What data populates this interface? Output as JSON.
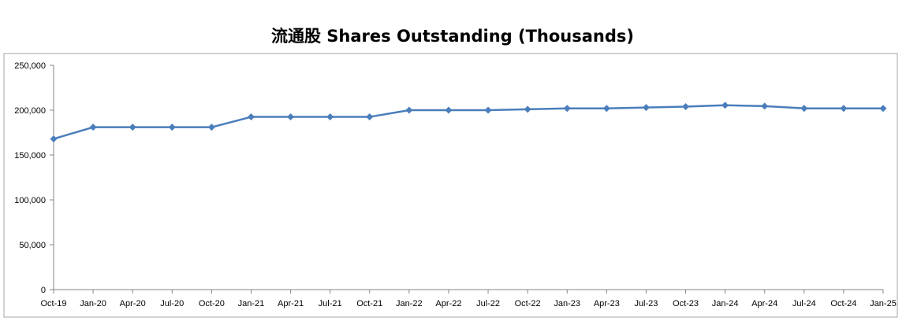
{
  "chart_data": {
    "type": "line",
    "title": "流通股 Shares Outstanding (Thousands)",
    "xlabel": "",
    "ylabel": "",
    "categories": [
      "Oct-19",
      "Jan-20",
      "Apr-20",
      "Jul-20",
      "Oct-20",
      "Jan-21",
      "Apr-21",
      "Jul-21",
      "Oct-21",
      "Jan-22",
      "Apr-22",
      "Jul-22",
      "Oct-22",
      "Jan-23",
      "Apr-23",
      "Jul-23",
      "Oct-23",
      "Jan-24",
      "Apr-24",
      "Jul-24",
      "Oct-24",
      "Jan-25"
    ],
    "series": [
      {
        "name": "",
        "color": "#4a7ebb",
        "values": [
          168000,
          181000,
          181000,
          181000,
          181000,
          192500,
          192500,
          192500,
          192500,
          200000,
          200000,
          200000,
          201000,
          202000,
          202000,
          203000,
          204000,
          205500,
          204500,
          202000,
          202000,
          202000
        ]
      }
    ],
    "ylim": [
      0,
      250000
    ],
    "yticks": [
      0,
      50000,
      100000,
      150000,
      200000,
      250000
    ],
    "ytick_labels": [
      "0",
      "50,000",
      "100,000",
      "150,000",
      "200,000",
      "250,000"
    ],
    "grid": false,
    "legend": "none",
    "marker": "diamond"
  }
}
